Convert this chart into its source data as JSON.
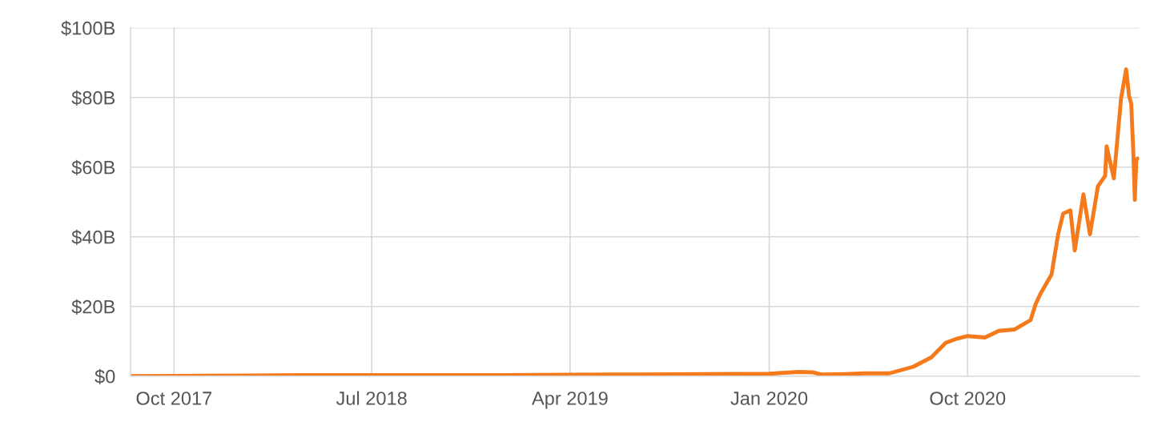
{
  "chart_data": {
    "type": "line",
    "x": [
      "2017-08-02",
      "2017-10-01",
      "2018-01-15",
      "2018-04-01",
      "2018-07-01",
      "2018-10-01",
      "2019-01-01",
      "2019-04-01",
      "2019-07-01",
      "2019-10-01",
      "2020-01-01",
      "2020-02-10",
      "2020-03-01",
      "2020-03-13",
      "2020-04-15",
      "2020-05-12",
      "2020-06-15",
      "2020-07-18",
      "2020-08-12",
      "2020-09-01",
      "2020-09-17",
      "2020-10-01",
      "2020-10-25",
      "2020-11-13",
      "2020-12-05",
      "2020-12-27",
      "2021-01-03",
      "2021-01-10",
      "2021-01-25",
      "2021-02-03",
      "2021-02-10",
      "2021-02-20",
      "2021-02-26",
      "2021-03-10",
      "2021-03-19",
      "2021-03-30",
      "2021-04-09",
      "2021-04-11",
      "2021-04-21",
      "2021-04-27",
      "2021-05-01",
      "2021-05-08",
      "2021-05-12",
      "2021-05-15",
      "2021-05-18",
      "2021-05-20",
      "2021-05-22",
      "2021-05-24"
    ],
    "series": [
      {
        "color": "#f57a1c",
        "values": [
          0.0,
          0.05,
          0.2,
          0.3,
          0.3,
          0.3,
          0.3,
          0.4,
          0.5,
          0.6,
          0.7,
          1.2,
          1.1,
          0.5,
          0.6,
          0.8,
          0.8,
          2.7,
          5.4,
          9.6,
          10.8,
          11.5,
          11.1,
          13.0,
          13.4,
          16.1,
          20.7,
          23.8,
          29.2,
          40.7,
          46.7,
          47.6,
          36.1,
          52.2,
          40.7,
          54.5,
          57.5,
          66,
          56.8,
          70.6,
          79.8,
          88.1,
          80.5,
          78.2,
          63.7,
          50.6,
          62,
          62.5
        ]
      }
    ],
    "xlim": [
      "2017-08-02",
      "2021-05-26"
    ],
    "xticks": [
      {
        "value": "2017-10-01",
        "label": "Oct 2017"
      },
      {
        "value": "2018-07-01",
        "label": "Jul 2018"
      },
      {
        "value": "2019-04-01",
        "label": "Apr 2019"
      },
      {
        "value": "2020-01-01",
        "label": "Jan 2020"
      },
      {
        "value": "2020-10-01",
        "label": "Oct 2020"
      }
    ],
    "ylim": [
      0,
      100
    ],
    "yticks": [
      {
        "value": 0,
        "label": "$0"
      },
      {
        "value": 20,
        "label": "$20B"
      },
      {
        "value": 40,
        "label": "$40B"
      },
      {
        "value": 60,
        "label": "$60B"
      },
      {
        "value": 80,
        "label": "$80B"
      },
      {
        "value": 100,
        "label": "$100B"
      }
    ],
    "grid": true,
    "legend": false,
    "line_style": "solid",
    "marker": "none"
  }
}
